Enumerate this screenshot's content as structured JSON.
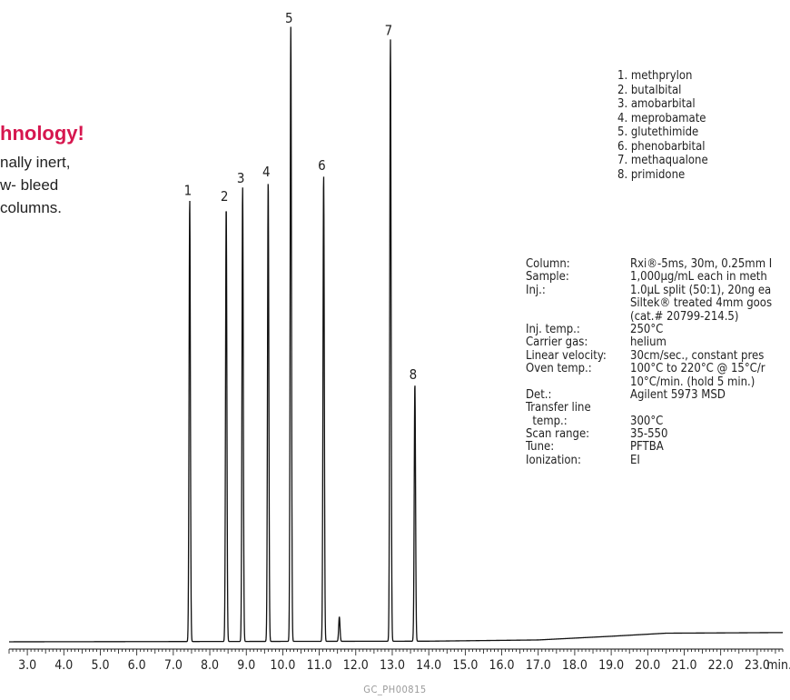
{
  "promo": {
    "title": "hnology!",
    "lines": [
      "nally inert,",
      "w- bleed",
      "columns."
    ]
  },
  "compounds": [
    "1. methprylon",
    "2. butalbital",
    "3. amobarbital",
    "4. meprobamate",
    "5. glutethimide",
    "6. phenobarbital",
    "7. methaqualone",
    "8. primidone"
  ],
  "conditions": [
    {
      "label": "Column:",
      "value": "Rxi®-5ms, 30m, 0.25mm I"
    },
    {
      "label": "Sample:",
      "value": "1,000µg/mL each in meth"
    },
    {
      "label": "Inj.:",
      "value": "1.0µL split (50:1), 20ng ea"
    },
    {
      "label": "",
      "value": "Siltek® treated 4mm goos"
    },
    {
      "label": "",
      "value": "(cat.# 20799-214.5)"
    },
    {
      "label": "Inj. temp.:",
      "value": "250°C"
    },
    {
      "label": "Carrier gas:",
      "value": "helium"
    },
    {
      "label": "Linear velocity:",
      "value": "30cm/sec., constant pres"
    },
    {
      "label": "Oven temp.:",
      "value": "100°C to 220°C @ 15°C/r"
    },
    {
      "label": "",
      "value": "10°C/min. (hold 5 min.)"
    },
    {
      "label": "Det.:",
      "value": "Agilent 5973 MSD"
    },
    {
      "label": "Transfer line",
      "value": ""
    },
    {
      "label": "  temp.:",
      "value": "300°C"
    },
    {
      "label": "Scan range:",
      "value": "35-550"
    },
    {
      "label": "Tune:",
      "value": "PFTBA"
    },
    {
      "label": "Ionization:",
      "value": "EI"
    }
  ],
  "chart_data": {
    "type": "line",
    "x_unit": "min.",
    "xlim": [
      2.5,
      23.7
    ],
    "x_ticks": [
      3.0,
      4.0,
      5.0,
      6.0,
      7.0,
      8.0,
      9.0,
      10.0,
      11.0,
      12.0,
      13.0,
      14.0,
      15.0,
      16.0,
      17.0,
      18.0,
      19.0,
      20.0,
      21.0,
      22.0,
      23.0
    ],
    "x_tick_labels": [
      "3.0",
      "4.0",
      "5.0",
      "6.0",
      "7.0",
      "8.0",
      "9.0",
      "10.0",
      "11.0",
      "12.0",
      "13.0",
      "14.0",
      "15.0",
      "16.0",
      "17.0",
      "18.0",
      "19.0",
      "20.0",
      "21.0",
      "22.0",
      "23.0",
      "min."
    ],
    "ylim": [
      0,
      100
    ],
    "baseline": 0,
    "peaks": [
      {
        "label": "1",
        "rt": 7.45,
        "height": 72
      },
      {
        "label": "2",
        "rt": 8.45,
        "height": 71
      },
      {
        "label": "3",
        "rt": 8.9,
        "height": 74
      },
      {
        "label": "4",
        "rt": 9.6,
        "height": 75
      },
      {
        "label": "5",
        "rt": 10.22,
        "height": 100
      },
      {
        "label": "6",
        "rt": 11.12,
        "height": 76
      },
      {
        "label": "7",
        "rt": 12.95,
        "height": 98
      },
      {
        "label": "8",
        "rt": 13.62,
        "height": 42
      }
    ],
    "minor_peaks": [
      {
        "rt": 11.55,
        "height": 4
      }
    ],
    "drift": [
      {
        "rt": 2.5,
        "height": 0.3
      },
      {
        "rt": 14.0,
        "height": 0.4
      },
      {
        "rt": 17.0,
        "height": 0.6
      },
      {
        "rt": 19.0,
        "height": 1.2
      },
      {
        "rt": 20.5,
        "height": 1.7
      },
      {
        "rt": 23.7,
        "height": 1.8
      }
    ],
    "footer": "GC_PH00815"
  }
}
